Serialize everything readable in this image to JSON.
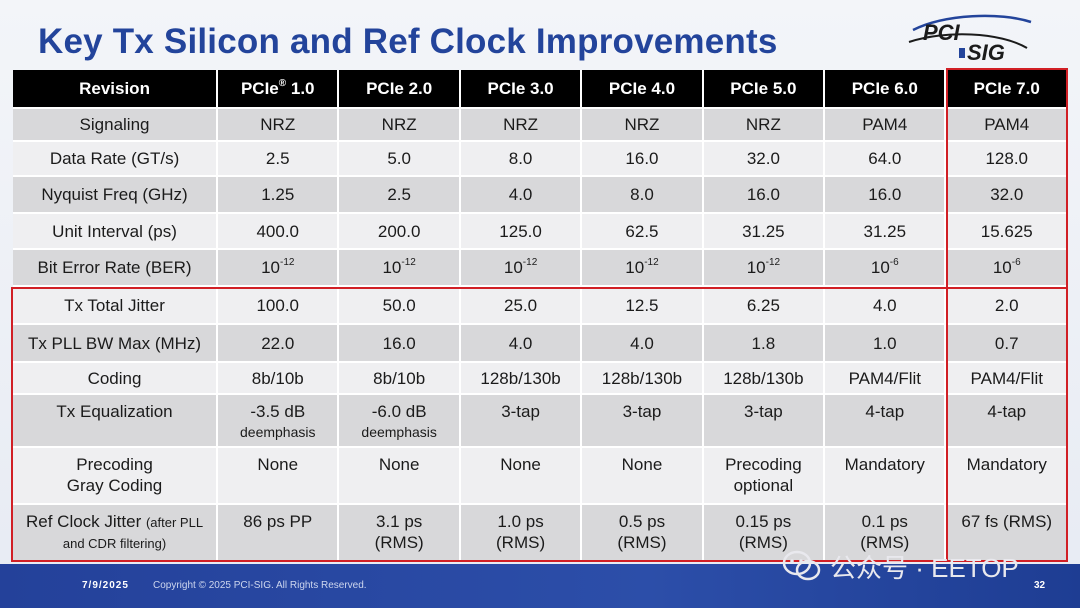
{
  "title": "Key Tx Silicon and Ref Clock Improvements",
  "logo": {
    "line1": "PCI",
    "line2": "SIG"
  },
  "table": {
    "headers": [
      "Revision",
      "PCIe",
      "PCIe 2.0",
      "PCIe 3.0",
      "PCIe 4.0",
      "PCIe 5.0",
      "PCIe 6.0",
      "PCIe 7.0"
    ],
    "header_first_reg": "®",
    "header_first_version": "1.0",
    "rows": [
      {
        "label": "Signaling",
        "cells": [
          "NRZ",
          "NRZ",
          "NRZ",
          "NRZ",
          "NRZ",
          "PAM4",
          "PAM4"
        ]
      },
      {
        "label": "Data Rate (GT/s)",
        "cells": [
          "2.5",
          "5.0",
          "8.0",
          "16.0",
          "32.0",
          "64.0",
          "128.0"
        ]
      },
      {
        "label": "Nyquist Freq (GHz)",
        "cells": [
          "1.25",
          "2.5",
          "4.0",
          "8.0",
          "16.0",
          "16.0",
          "32.0"
        ]
      },
      {
        "label": "Unit Interval (ps)",
        "cells": [
          "400.0",
          "200.0",
          "125.0",
          "62.5",
          "31.25",
          "31.25",
          "15.625"
        ]
      },
      {
        "label": "Bit Error Rate (BER)",
        "base": "10",
        "exps": [
          "-12",
          "-12",
          "-12",
          "-12",
          "-12",
          "-6",
          "-6"
        ]
      },
      {
        "label": "Tx Total Jitter",
        "cells": [
          "100.0",
          "50.0",
          "25.0",
          "12.5",
          "6.25",
          "4.0",
          "2.0"
        ]
      },
      {
        "label": "Tx PLL BW Max (MHz)",
        "cells": [
          "22.0",
          "16.0",
          "4.0",
          "4.0",
          "1.8",
          "1.0",
          "0.7"
        ]
      },
      {
        "label": "Coding",
        "cells": [
          "8b/10b",
          "8b/10b",
          "128b/130b",
          "128b/130b",
          "128b/130b",
          "PAM4/Flit",
          "PAM4/Flit"
        ]
      },
      {
        "label": "Tx Equalization",
        "cells": [
          [
            "-3.5 dB",
            "deemphasis"
          ],
          [
            "-6.0 dB",
            "deemphasis"
          ],
          [
            "3-tap"
          ],
          [
            "3-tap"
          ],
          [
            "3-tap"
          ],
          [
            "4-tap"
          ],
          [
            "4-tap"
          ]
        ]
      },
      {
        "label_lines": [
          "Precoding",
          "Gray Coding"
        ],
        "cells": [
          [
            "None"
          ],
          [
            "None"
          ],
          [
            "None"
          ],
          [
            "None"
          ],
          [
            "Precoding",
            "optional"
          ],
          [
            "Mandatory"
          ],
          [
            "Mandatory"
          ]
        ]
      },
      {
        "label_main": "Ref Clock Jitter",
        "label_note_1": "(after PLL",
        "label_note_2": "and CDR filtering)",
        "cells": [
          [
            "86 ps PP"
          ],
          [
            "3.1 ps",
            "(RMS)"
          ],
          [
            "1.0 ps",
            "(RMS)"
          ],
          [
            "0.5 ps",
            "(RMS)"
          ],
          [
            "0.15 ps",
            "(RMS)"
          ],
          [
            "0.1 ps",
            "(RMS)"
          ],
          [
            "67 fs (RMS)"
          ]
        ]
      }
    ]
  },
  "footer": {
    "date": "7/9/2025",
    "copyright": "Copyright © 2025 PCI-SIG. All Rights Reserved.",
    "page": "32"
  },
  "watermark": "公众号 · EETOP",
  "colors": {
    "title": "#23449b",
    "highlight": "#d11f25",
    "footer": "#24419a"
  }
}
